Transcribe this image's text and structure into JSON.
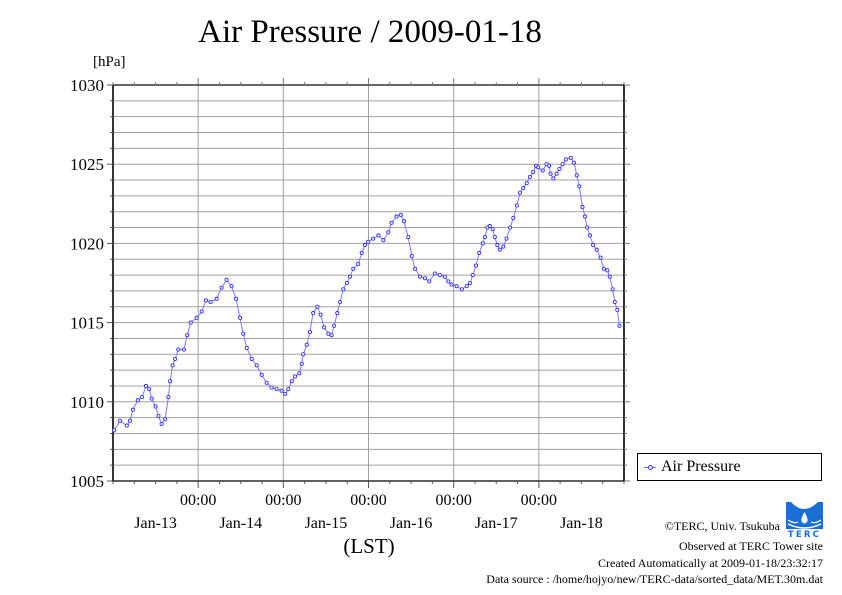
{
  "title": "Air Pressure / 2009-01-18",
  "unit_label": "[hPa]",
  "legend": {
    "label": "Air Pressure"
  },
  "footer": {
    "copyright": "©TERC, Univ. Tsukuba",
    "observed": "Observed at TERC Tower site",
    "created": "Created Automatically at 2009-01-18/23:32:17",
    "source": "Data source : /home/hojyo/new/TERC-data/sorted_data/MET.30m.dat",
    "logo_text": "TERC"
  },
  "colors": {
    "series": "#3232ff",
    "line": "#7a7aff",
    "grid": "#a0a0a0",
    "logo": "#1a6fd6"
  },
  "chart_data": {
    "type": "line",
    "title": "Air Pressure / 2009-01-18",
    "xlabel": "(LST)",
    "ylabel": "[hPa]",
    "x_unit": "hours since Jan-12 00:00 (LST)",
    "xlim": [
      0,
      144
    ],
    "ylim": [
      1005,
      1030
    ],
    "yticks": [
      1005,
      1010,
      1015,
      1020,
      1025,
      1030
    ],
    "ytick_labels": [
      "1005",
      "1010",
      "1015",
      "1020",
      "1025",
      "1030"
    ],
    "y_grid_step": 1,
    "xticks": [
      24,
      48,
      72,
      96,
      120
    ],
    "xtick_time_labels": [
      "00:00",
      "00:00",
      "00:00",
      "00:00",
      "00:00"
    ],
    "x_day_labels": [
      {
        "at": 12,
        "label": "Jan-13"
      },
      {
        "at": 36,
        "label": "Jan-14"
      },
      {
        "at": 60,
        "label": "Jan-15"
      },
      {
        "at": 84,
        "label": "Jan-16"
      },
      {
        "at": 108,
        "label": "Jan-17"
      },
      {
        "at": 132,
        "label": "Jan-18"
      }
    ],
    "x_minor_step": 6,
    "grid": true,
    "legend_position": "right-bottom",
    "series": [
      {
        "name": "Air Pressure",
        "x": [
          0.3,
          2.0,
          3.9,
          4.8,
          5.6,
          7.0,
          8.2,
          9.3,
          10.2,
          10.9,
          12.0,
          12.8,
          13.7,
          14.7,
          15.6,
          16.1,
          16.8,
          17.5,
          18.4,
          20.0,
          20.9,
          21.9,
          23.6,
          25.0,
          26.2,
          27.5,
          29.2,
          30.6,
          32.0,
          33.4,
          34.7,
          35.8,
          36.7,
          37.7,
          39.1,
          40.5,
          41.9,
          43.3,
          44.7,
          46.1,
          47.5,
          48.5,
          49.4,
          50.4,
          51.3,
          52.5,
          53.2,
          53.6,
          54.6,
          55.5,
          56.4,
          57.6,
          58.5,
          59.5,
          60.7,
          61.6,
          62.3,
          63.2,
          64.0,
          64.9,
          65.9,
          66.8,
          67.7,
          69.1,
          70.1,
          71.0,
          71.9,
          73.3,
          74.8,
          76.2,
          77.6,
          78.5,
          79.9,
          81.1,
          82.0,
          83.2,
          84.2,
          85.1,
          86.5,
          87.9,
          89.1,
          90.7,
          92.1,
          93.5,
          94.5,
          95.4,
          96.8,
          98.3,
          99.7,
          100.6,
          101.4,
          102.3,
          103.2,
          104.2,
          104.8,
          105.5,
          106.2,
          107.0,
          107.6,
          108.3,
          109.0,
          110.0,
          110.9,
          111.9,
          112.8,
          113.8,
          114.7,
          115.6,
          116.6,
          117.5,
          118.4,
          119.2,
          119.8,
          121.1,
          122.2,
          122.9,
          123.3,
          124.1,
          125.0,
          125.8,
          126.7,
          127.6,
          129.0,
          129.9,
          130.7,
          131.4,
          132.3,
          133.0,
          133.6,
          134.4,
          135.3,
          136.3,
          137.4,
          138.3,
          139.3,
          140.0,
          140.8,
          141.4,
          142.1,
          142.7
        ],
        "values": [
          1008.2,
          1008.8,
          1008.5,
          1008.8,
          1009.5,
          1010.1,
          1010.3,
          1011.0,
          1010.8,
          1010.2,
          1009.7,
          1009.1,
          1008.6,
          1008.9,
          1010.3,
          1011.3,
          1012.3,
          1012.7,
          1013.3,
          1013.3,
          1014.2,
          1015.0,
          1015.3,
          1015.7,
          1016.4,
          1016.3,
          1016.5,
          1017.2,
          1017.7,
          1017.3,
          1016.5,
          1015.3,
          1014.3,
          1013.4,
          1012.7,
          1012.3,
          1011.7,
          1011.2,
          1010.9,
          1010.8,
          1010.7,
          1010.5,
          1010.8,
          1011.3,
          1011.6,
          1011.8,
          1012.4,
          1013.0,
          1013.6,
          1014.4,
          1015.6,
          1016.0,
          1015.5,
          1014.7,
          1014.3,
          1014.2,
          1014.8,
          1015.6,
          1016.3,
          1017.1,
          1017.5,
          1017.9,
          1018.4,
          1018.7,
          1019.4,
          1019.9,
          1020.1,
          1020.3,
          1020.5,
          1020.2,
          1020.7,
          1021.3,
          1021.7,
          1021.8,
          1021.4,
          1020.4,
          1019.2,
          1018.4,
          1017.9,
          1017.8,
          1017.6,
          1018.1,
          1018.0,
          1017.9,
          1017.6,
          1017.4,
          1017.3,
          1017.1,
          1017.3,
          1017.5,
          1018.0,
          1018.6,
          1019.4,
          1020.0,
          1020.4,
          1021.0,
          1021.1,
          1020.9,
          1020.4,
          1019.9,
          1019.6,
          1019.8,
          1020.3,
          1021.0,
          1021.6,
          1022.4,
          1023.2,
          1023.5,
          1023.8,
          1024.2,
          1024.5,
          1024.9,
          1024.8,
          1024.6,
          1025.0,
          1024.9,
          1024.4,
          1024.1,
          1024.4,
          1024.7,
          1025.0,
          1025.3,
          1025.4,
          1025.1,
          1024.3,
          1023.6,
          1022.3,
          1021.7,
          1021.0,
          1020.5,
          1019.9,
          1019.6,
          1019.1,
          1018.4,
          1018.3,
          1017.9,
          1017.1,
          1016.3,
          1015.8,
          1014.8
        ]
      }
    ]
  }
}
